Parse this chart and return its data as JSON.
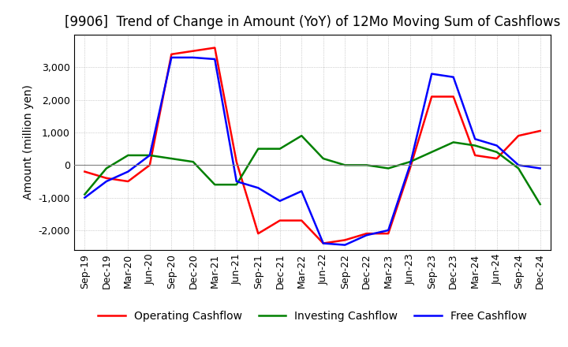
{
  "title": "[9906]  Trend of Change in Amount (YoY) of 12Mo Moving Sum of Cashflows",
  "ylabel": "Amount (million yen)",
  "x_labels": [
    "Sep-19",
    "Dec-19",
    "Mar-20",
    "Jun-20",
    "Sep-20",
    "Dec-20",
    "Mar-21",
    "Jun-21",
    "Sep-21",
    "Dec-21",
    "Mar-22",
    "Jun-22",
    "Sep-22",
    "Dec-22",
    "Mar-23",
    "Jun-23",
    "Sep-23",
    "Dec-23",
    "Mar-24",
    "Jun-24",
    "Sep-24",
    "Dec-24"
  ],
  "operating_cashflow": [
    -200,
    -400,
    -500,
    0,
    3400,
    3500,
    3600,
    100,
    -2100,
    -1700,
    -1700,
    -2400,
    -2300,
    -2100,
    -2100,
    -100,
    2100,
    2100,
    300,
    200,
    900,
    1050
  ],
  "investing_cashflow": [
    -900,
    -100,
    300,
    300,
    200,
    100,
    -600,
    -600,
    500,
    500,
    900,
    200,
    0,
    0,
    -100,
    100,
    400,
    700,
    600,
    400,
    -100,
    -1200
  ],
  "free_cashflow": [
    -1000,
    -500,
    -200,
    300,
    3300,
    3300,
    3250,
    -500,
    -700,
    -1100,
    -800,
    -2400,
    -2450,
    -2150,
    -2000,
    0,
    2800,
    2700,
    800,
    600,
    0,
    -100
  ],
  "ylim": [
    -2600,
    4000
  ],
  "yticks": [
    -2000,
    -1000,
    0,
    1000,
    2000,
    3000
  ],
  "operating_color": "#ff0000",
  "investing_color": "#008000",
  "free_color": "#0000ff",
  "bg_color": "#ffffff",
  "grid_color": "#aaaaaa",
  "title_fontsize": 12,
  "label_fontsize": 10,
  "tick_fontsize": 9
}
